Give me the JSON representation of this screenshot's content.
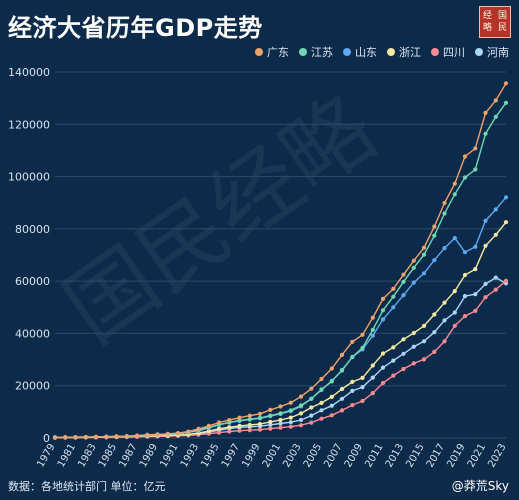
{
  "header": {
    "title": "经济大省历年GDP走势"
  },
  "seal": {
    "chars": [
      "经",
      "国",
      "略",
      "民"
    ]
  },
  "watermark": {
    "text": "国民经略"
  },
  "footer": {
    "source": "数据：各地统计部门 单位：亿元",
    "sign": "@莽荒Sky"
  },
  "colors": {
    "background": "#0c2a4a",
    "axis_text": "#d6e0ec",
    "grid": "#2a4a6d"
  },
  "chart_data": {
    "type": "line",
    "title": "经济大省历年GDP走势",
    "ylabel": "",
    "xlabel": "",
    "ylim": [
      0,
      140000
    ],
    "yticks": [
      0,
      20000,
      40000,
      60000,
      80000,
      100000,
      120000,
      140000
    ],
    "xtick_labels": [
      "1979",
      "1981",
      "1983",
      "1985",
      "1987",
      "1989",
      "1991",
      "1993",
      "1995",
      "1997",
      "1999",
      "2001",
      "2003",
      "2005",
      "2007",
      "2009",
      "2011",
      "2013",
      "2015",
      "2017",
      "2019",
      "2021",
      "2023"
    ],
    "x": [
      1979,
      1980,
      1981,
      1982,
      1983,
      1984,
      1985,
      1986,
      1987,
      1988,
      1989,
      1990,
      1991,
      1992,
      1993,
      1994,
      1995,
      1996,
      1997,
      1998,
      1999,
      2000,
      2001,
      2002,
      2003,
      2004,
      2005,
      2006,
      2007,
      2008,
      2009,
      2010,
      2011,
      2012,
      2013,
      2014,
      2015,
      2016,
      2017,
      2018,
      2019,
      2020,
      2021,
      2022,
      2023
    ],
    "legend_position": "top-right",
    "grid": true,
    "series": [
      {
        "name": "广东",
        "color": "#f0a26a",
        "values": [
          209,
          250,
          290,
          340,
          370,
          460,
          580,
          670,
          850,
          1160,
          1380,
          1560,
          1890,
          2450,
          3470,
          4620,
          5930,
          6830,
          7770,
          8530,
          9250,
          10740,
          12040,
          13500,
          15840,
          18860,
          22560,
          26590,
          31780,
          36800,
          39480,
          46010,
          53210,
          57070,
          62470,
          67810,
          72810,
          80850,
          89880,
          97280,
          107670,
          110760,
          124370,
          129120,
          135670
        ]
      },
      {
        "name": "江苏",
        "color": "#6fd8b0",
        "values": [
          299,
          320,
          350,
          390,
          440,
          520,
          650,
          740,
          920,
          1210,
          1320,
          1420,
          1600,
          2130,
          2990,
          4060,
          5150,
          6000,
          6680,
          7200,
          7700,
          8550,
          9460,
          10610,
          12440,
          15000,
          18600,
          21650,
          26020,
          30980,
          34460,
          41380,
          48840,
          54060,
          59750,
          65090,
          70120,
          77390,
          85870,
          93210,
          99630,
          102720,
          116360,
          122880,
          128220
        ]
      },
      {
        "name": "山东",
        "color": "#5fa8f0",
        "values": [
          225,
          250,
          290,
          350,
          390,
          460,
          580,
          650,
          780,
          1010,
          1240,
          1510,
          1810,
          2200,
          2770,
          3840,
          5000,
          5880,
          6540,
          7020,
          7490,
          8340,
          9190,
          10280,
          12080,
          15020,
          18370,
          21900,
          25780,
          30940,
          33900,
          39170,
          45360,
          50010,
          54680,
          59430,
          63000,
          68020,
          72630,
          76470,
          71070,
          73130,
          83100,
          87440,
          92070
        ]
      },
      {
        "name": "浙江",
        "color": "#f2e9a0",
        "values": [
          157,
          180,
          200,
          230,
          260,
          320,
          430,
          500,
          600,
          770,
          850,
          900,
          1090,
          1380,
          1910,
          2670,
          3550,
          4150,
          4640,
          4990,
          5360,
          6140,
          6900,
          7800,
          9400,
          11650,
          13420,
          15720,
          18750,
          21460,
          22990,
          27720,
          32320,
          34670,
          37760,
          40170,
          42890,
          47250,
          51770,
          56200,
          62350,
          64610,
          73520,
          77720,
          82550
        ]
      },
      {
        "name": "四川",
        "color": "#ff8a92",
        "values": [
          150,
          170,
          190,
          210,
          240,
          280,
          350,
          400,
          460,
          550,
          620,
          740,
          850,
          1000,
          1260,
          1650,
          2070,
          2480,
          2810,
          3000,
          3170,
          3600,
          3950,
          4330,
          4880,
          5900,
          7390,
          8690,
          10560,
          12600,
          14150,
          17190,
          21030,
          23870,
          26390,
          28540,
          30050,
          32930,
          36980,
          42900,
          46620,
          48600,
          53850,
          56750,
          60130
        ]
      },
      {
        "name": "河南",
        "color": "#a9d6f8",
        "values": [
          190,
          220,
          240,
          260,
          320,
          370,
          450,
          500,
          610,
          750,
          850,
          930,
          1040,
          1290,
          1660,
          2220,
          3000,
          3630,
          4040,
          4300,
          4520,
          5050,
          5530,
          6040,
          6870,
          8550,
          10590,
          12370,
          15010,
          18020,
          19480,
          23090,
          26930,
          29600,
          32190,
          34940,
          37000,
          40470,
          44990,
          48000,
          54260,
          54990,
          58890,
          61350,
          59130
        ]
      }
    ]
  }
}
